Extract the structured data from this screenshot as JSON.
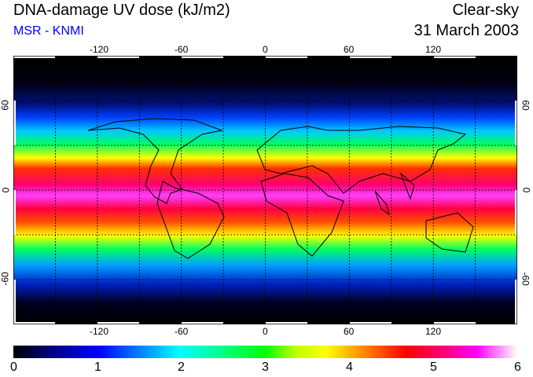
{
  "header": {
    "title": "DNA-damage UV dose (kJ/m2)",
    "credit": "MSR - KNMI",
    "scenario": "Clear-sky",
    "date": "31 March 2003"
  },
  "map": {
    "lon_labels": [
      "-120",
      "-60",
      "0",
      "60",
      "120"
    ],
    "lat_labels": [
      "60",
      "0",
      "-60"
    ],
    "lon_range": [
      -180,
      180
    ],
    "lat_range": [
      -90,
      90
    ],
    "grid": "dashed every 30°"
  },
  "colorbar": {
    "labels": [
      "0",
      "1",
      "2",
      "3",
      "4",
      "5",
      "6"
    ],
    "range": [
      0,
      6
    ],
    "colors": [
      "#000000",
      "#0000ff",
      "#00ffff",
      "#00ff00",
      "#ffff00",
      "#ff0000",
      "#ff00ff",
      "#ffffff"
    ]
  }
}
